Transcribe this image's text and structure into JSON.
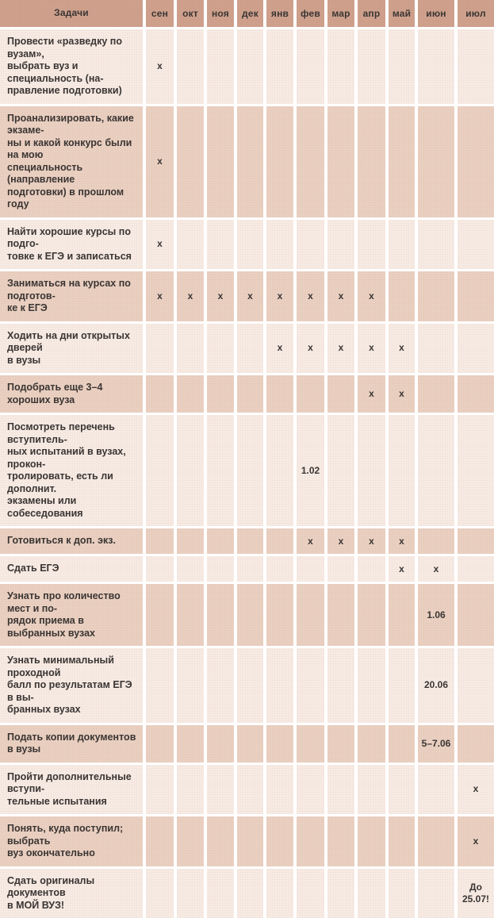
{
  "colors": {
    "header_bg": "#d0a28e",
    "row_light_bg": "#f8ece5",
    "row_dark_bg": "#ebd1c2",
    "separator": "#ffffff",
    "text": "#3a3533"
  },
  "table": {
    "task_header": "Задачи",
    "months": [
      "сен",
      "окт",
      "ноя",
      "дек",
      "янв",
      "фев",
      "мар",
      "апр",
      "май",
      "июн",
      "июл"
    ],
    "rows": [
      {
        "task": "Провести «разведку по вузам»,\nвыбрать вуз и специальность (на-\nправление подготовки)",
        "cells": [
          "x",
          "",
          "",
          "",
          "",
          "",
          "",
          "",
          "",
          "",
          ""
        ]
      },
      {
        "task": "Проанализировать, какие экзаме-\nны и какой конкурс были на мою\nспециальность (направление\nподготовки) в прошлом году",
        "cells": [
          "x",
          "",
          "",
          "",
          "",
          "",
          "",
          "",
          "",
          "",
          ""
        ]
      },
      {
        "task": "Найти хорошие курсы по подго-\nтовке к ЕГЭ и записаться",
        "cells": [
          "x",
          "",
          "",
          "",
          "",
          "",
          "",
          "",
          "",
          "",
          ""
        ]
      },
      {
        "task": "Заниматься на курсах по подготов-\nке к ЕГЭ",
        "cells": [
          "x",
          "x",
          "x",
          "x",
          "x",
          "x",
          "x",
          "x",
          "",
          "",
          ""
        ]
      },
      {
        "task": "Ходить на дни открытых дверей\nв вузы",
        "cells": [
          "",
          "",
          "",
          "",
          "x",
          "x",
          "x",
          "x",
          "x",
          "",
          ""
        ]
      },
      {
        "task": "Подобрать еще 3–4 хороших вуза",
        "cells": [
          "",
          "",
          "",
          "",
          "",
          "",
          "",
          "x",
          "x",
          "",
          ""
        ]
      },
      {
        "task": "Посмотреть перечень вступитель-\nных испытаний в вузах, прокон-\nтролировать, есть ли дополнит.\nэкзамены или собеседования",
        "cells": [
          "",
          "",
          "",
          "",
          "",
          "1.02",
          "",
          "",
          "",
          "",
          ""
        ]
      },
      {
        "task": "Готовиться к доп. экз.",
        "cells": [
          "",
          "",
          "",
          "",
          "",
          "x",
          "x",
          "x",
          "x",
          "",
          ""
        ]
      },
      {
        "task": "Сдать ЕГЭ",
        "cells": [
          "",
          "",
          "",
          "",
          "",
          "",
          "",
          "",
          "x",
          "x",
          ""
        ]
      },
      {
        "task": "Узнать про количество мест и по-\nрядок приема в выбранных вузах",
        "cells": [
          "",
          "",
          "",
          "",
          "",
          "",
          "",
          "",
          "",
          "1.06",
          ""
        ]
      },
      {
        "task": "Узнать минимальный проходной\nбалл по результатам ЕГЭ в вы-\nбранных вузах",
        "cells": [
          "",
          "",
          "",
          "",
          "",
          "",
          "",
          "",
          "",
          "20.06",
          ""
        ]
      },
      {
        "task": "Подать копии документов в вузы",
        "cells": [
          "",
          "",
          "",
          "",
          "",
          "",
          "",
          "",
          "",
          "5–7.06",
          ""
        ]
      },
      {
        "task": "Пройти дополнительные вступи-\nтельные испытания",
        "cells": [
          "",
          "",
          "",
          "",
          "",
          "",
          "",
          "",
          "",
          "",
          "x"
        ]
      },
      {
        "task": "Понять, куда поступил; выбрать\nвуз окончательно",
        "cells": [
          "",
          "",
          "",
          "",
          "",
          "",
          "",
          "",
          "",
          "",
          "x"
        ]
      },
      {
        "task": "Сдать оригиналы документов\nв МОЙ ВУЗ!",
        "cells": [
          "",
          "",
          "",
          "",
          "",
          "",
          "",
          "",
          "",
          "",
          "До\n25.07!"
        ]
      }
    ]
  }
}
